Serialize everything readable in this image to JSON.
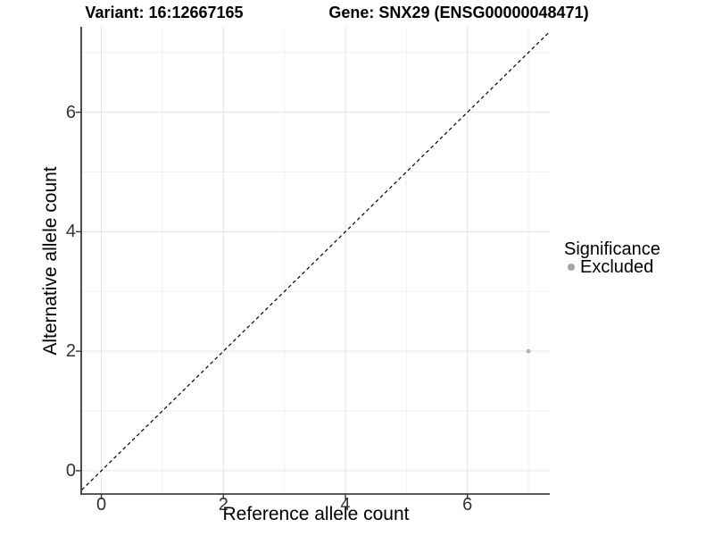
{
  "chart_data": {
    "type": "scatter",
    "title_left": "Variant: 16:12667165",
    "title_right": "Gene: SNX29 (ENSG00000048471)",
    "xlabel": "Reference allele count",
    "ylabel": "Alternative allele count",
    "xlim": [
      -0.33,
      7.35
    ],
    "ylim": [
      -0.39,
      7.43
    ],
    "x_ticks": [
      0,
      2,
      4,
      6
    ],
    "y_ticks": [
      0,
      2,
      4,
      6
    ],
    "x_minor": [
      1,
      3,
      5,
      7
    ],
    "y_minor": [
      1,
      3,
      5,
      7
    ],
    "grid": "major+minor",
    "identity_line": {
      "style": "dashed",
      "color": "#000000",
      "from": -1,
      "to": 9
    },
    "series": [
      {
        "name": "Excluded",
        "color": "#b3b3b3",
        "point_radius": 2.4,
        "points": [
          [
            7,
            2
          ]
        ]
      }
    ],
    "legend": {
      "title": "Significance",
      "position": "right",
      "entries": [
        {
          "label": "Excluded",
          "color": "#a6a6a6"
        }
      ]
    },
    "colors": {
      "grid_major": "#e3e3e3",
      "grid_minor": "#f1f1f1",
      "axis": "#222222",
      "tick": "#333333"
    }
  }
}
